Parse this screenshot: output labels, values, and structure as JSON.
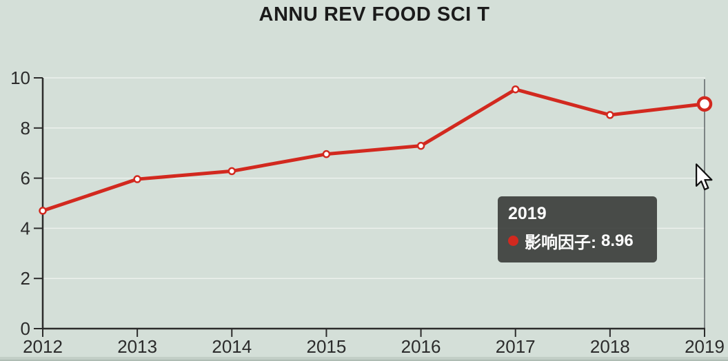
{
  "title": "ANNU REV FOOD SCI T",
  "chart_data": {
    "type": "line",
    "title": "ANNU REV FOOD SCI T",
    "categories": [
      "2012",
      "2013",
      "2014",
      "2015",
      "2016",
      "2017",
      "2018",
      "2019"
    ],
    "series": [
      {
        "name": "影响因子",
        "color": "#d2291f",
        "values": [
          4.7,
          5.96,
          6.28,
          6.96,
          7.29,
          9.54,
          8.52,
          8.96
        ]
      }
    ],
    "xlabel": "",
    "ylabel": "",
    "ylim": [
      0,
      10
    ],
    "yticks": [
      0,
      2,
      4,
      6,
      8,
      10
    ],
    "grid": true,
    "legend_position": "none",
    "highlight": {
      "index": 7,
      "crosshair": true
    }
  },
  "tooltip": {
    "year": "2019",
    "label": "影响因子:",
    "value": "8.96"
  },
  "colors": {
    "background": "#d4dfd8",
    "series_red": "#d2291f",
    "axis": "#2b2b2b",
    "grid_line": "rgba(255,255,255,0.55)",
    "crosshair": "#5f6568",
    "tooltip_bg": "rgba(50,53,51,0.87)",
    "marker_fill": "#ffffff"
  }
}
